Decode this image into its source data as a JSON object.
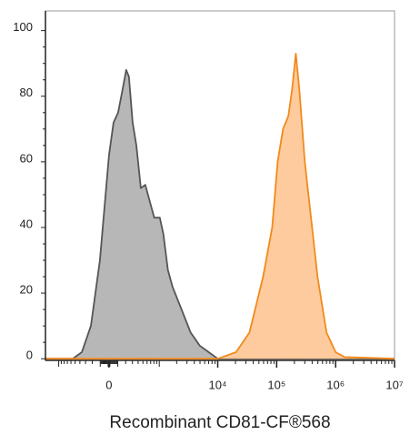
{
  "chart_data": {
    "type": "histogram-overlay",
    "x_label": "Recombinant CD81-CF®568",
    "xscale": "biex",
    "xlim": [
      -1700,
      10000000
    ],
    "xticks": [
      0,
      {
        "value": 10000,
        "label": "10⁴"
      },
      {
        "value": 100000,
        "label": "10⁵"
      },
      {
        "value": 1000000,
        "label": "10⁶"
      },
      {
        "value": 10000000,
        "label": "10⁷"
      }
    ],
    "ylim": [
      -0.5,
      106
    ],
    "yticks": [
      0,
      20,
      40,
      60,
      80,
      100
    ],
    "series": [
      {
        "color": "#555555",
        "fill": "#b3b3b3",
        "x": [
          -1700,
          -555,
          -364,
          -220,
          -104,
          0,
          51,
          104,
          159,
          207,
          246,
          303,
          367,
          455,
          555,
          700,
          815,
          1020,
          1180,
          1414,
          1696,
          2425,
          3460,
          4950,
          7040,
          10000,
          10000000
        ],
        "values": [
          0,
          0,
          2,
          10,
          30,
          62,
          72,
          75,
          82,
          88,
          86,
          72,
          65,
          52,
          53,
          47,
          43,
          43,
          38,
          27,
          22,
          15,
          8,
          4,
          2,
          0,
          0
        ]
      },
      {
        "color": "#f28a1c",
        "fill": "#fdc898",
        "x": [
          -1700,
          10000,
          20400,
          34600,
          58900,
          84000,
          104000,
          128000,
          158000,
          183000,
          211000,
          243000,
          300000,
          372000,
          493000,
          703000,
          1000000,
          1430000,
          10000000
        ],
        "values": [
          0,
          0,
          2,
          8,
          25,
          40,
          60,
          70,
          74,
          82,
          93,
          82,
          60,
          45,
          25,
          8,
          2,
          0.5,
          0
        ]
      }
    ]
  }
}
